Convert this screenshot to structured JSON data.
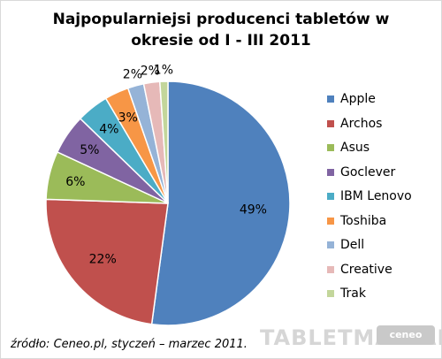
{
  "chart_data": {
    "type": "pie",
    "title_lines": [
      "Najpopularniejsi producenci tabletów w",
      "okresie od I - III 2011"
    ],
    "categories": [
      "Apple",
      "Archos",
      "Asus",
      "Goclever",
      "IBM Lenovo",
      "Toshiba",
      "Dell",
      "Creative",
      "Trak"
    ],
    "values": [
      49,
      22,
      6,
      5,
      4,
      3,
      2,
      2,
      1
    ],
    "data_labels": [
      "49%",
      "22%",
      "6%",
      "5%",
      "4%",
      "3%",
      "2%",
      "2%",
      "1%"
    ],
    "colors": [
      "#4f81bd",
      "#c0504d",
      "#9bbb59",
      "#8064a2",
      "#4bacc6",
      "#f79646",
      "#95b3d7",
      "#e6b9b8",
      "#c3d69b"
    ],
    "legend_position": "right"
  },
  "source_note": "źródło: Ceneo.pl, styczeń – marzec 2011.",
  "watermark": {
    "text": "TABLETMANIAK",
    "logo_text": "ceneo"
  }
}
